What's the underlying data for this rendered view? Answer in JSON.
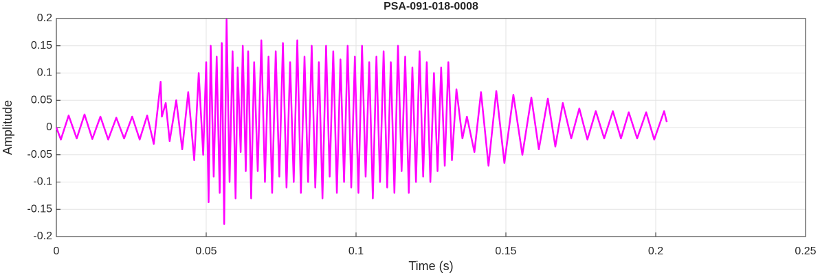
{
  "chart_data": {
    "type": "line",
    "title": "PSA-091-018-0008",
    "xlabel": "Time (s)",
    "ylabel": "Amplitude",
    "xlim": [
      0,
      0.25
    ],
    "xticks": [
      0,
      0.05,
      0.1,
      0.15,
      0.2,
      0.25
    ],
    "ylim": [
      -0.2,
      0.2
    ],
    "yticks": [
      -0.2,
      -0.15,
      -0.1,
      -0.05,
      0,
      0.05,
      0.1,
      0.15,
      0.2
    ],
    "grid": true,
    "x": [
      0,
      0.0015,
      0.0041,
      0.0068,
      0.0094,
      0.012,
      0.0147,
      0.0173,
      0.02,
      0.0226,
      0.0253,
      0.0278,
      0.0303,
      0.0325,
      0.0348,
      0.0352,
      0.0365,
      0.0378,
      0.04,
      0.042,
      0.044,
      0.046,
      0.0475,
      0.049,
      0.05,
      0.0508,
      0.0515,
      0.0525,
      0.0535,
      0.0545,
      0.0552,
      0.056,
      0.0568,
      0.0578,
      0.0588,
      0.0598,
      0.0605,
      0.0615,
      0.0622,
      0.0632,
      0.064,
      0.065,
      0.066,
      0.0672,
      0.0684,
      0.0696,
      0.0708,
      0.072,
      0.0732,
      0.0744,
      0.0756,
      0.0768,
      0.078,
      0.0792,
      0.0804,
      0.0816,
      0.0828,
      0.084,
      0.0852,
      0.0864,
      0.0876,
      0.0888,
      0.09,
      0.0912,
      0.0924,
      0.0936,
      0.0948,
      0.096,
      0.0972,
      0.0984,
      0.0996,
      0.1008,
      0.102,
      0.1032,
      0.1044,
      0.1056,
      0.1068,
      0.108,
      0.1092,
      0.1104,
      0.1116,
      0.1128,
      0.114,
      0.1152,
      0.1164,
      0.1176,
      0.1188,
      0.12,
      0.1212,
      0.1224,
      0.1236,
      0.1248,
      0.126,
      0.1272,
      0.1284,
      0.1296,
      0.1308,
      0.132,
      0.1335,
      0.1355,
      0.137,
      0.1395,
      0.1417,
      0.1442,
      0.1468,
      0.1495,
      0.1525,
      0.1555,
      0.1585,
      0.161,
      0.164,
      0.1665,
      0.169,
      0.1718,
      0.1745,
      0.1772,
      0.18,
      0.1828,
      0.1857,
      0.1884,
      0.191,
      0.1938,
      0.1968,
      0.1995,
      0.2028,
      0.2037
    ],
    "series": [
      {
        "color": "#ff00ff",
        "values": [
          0,
          -0.022,
          0.022,
          -0.02,
          0.024,
          -0.021,
          0.02,
          -0.022,
          0.018,
          -0.02,
          0.02,
          -0.022,
          0.022,
          -0.03,
          0.084,
          0.02,
          0.045,
          -0.025,
          0.05,
          -0.04,
          0.065,
          -0.06,
          0.1,
          -0.05,
          0.12,
          -0.137,
          0.15,
          -0.09,
          0.13,
          -0.12,
          0.155,
          -0.177,
          0.198,
          -0.1,
          0.14,
          -0.13,
          0.11,
          -0.045,
          0.15,
          -0.08,
          0.14,
          -0.13,
          0.12,
          -0.08,
          0.16,
          -0.1,
          0.13,
          -0.12,
          0.14,
          -0.09,
          0.155,
          -0.11,
          0.12,
          -0.1,
          0.16,
          -0.12,
          0.13,
          -0.1,
          0.15,
          -0.11,
          0.12,
          -0.13,
          0.15,
          -0.09,
          0.14,
          -0.12,
          0.125,
          -0.1,
          0.15,
          -0.11,
          0.13,
          -0.12,
          0.15,
          -0.09,
          0.12,
          -0.13,
          0.13,
          -0.1,
          0.14,
          -0.11,
          0.12,
          -0.12,
          0.15,
          -0.08,
          0.13,
          -0.12,
          0.11,
          -0.1,
          0.14,
          -0.09,
          0.12,
          -0.1,
          0.1,
          -0.08,
          0.11,
          -0.07,
          0.12,
          -0.06,
          0.07,
          -0.02,
          0.02,
          -0.045,
          0.065,
          -0.07,
          0.067,
          -0.065,
          0.06,
          -0.05,
          0.055,
          -0.04,
          0.053,
          -0.035,
          0.045,
          -0.02,
          0.035,
          -0.022,
          0.03,
          -0.02,
          0.03,
          -0.02,
          0.028,
          -0.02,
          0.028,
          -0.022,
          0.03,
          0.01
        ]
      }
    ]
  }
}
